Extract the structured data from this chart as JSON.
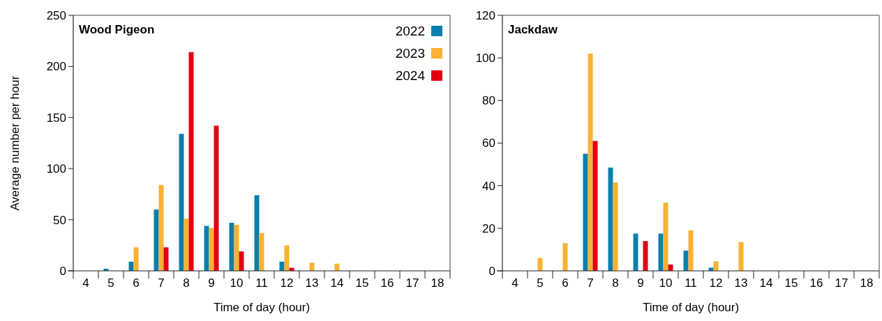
{
  "chart_data": [
    {
      "type": "bar",
      "title": "Wood Pigeon",
      "xlabel": "Time of day (hour)",
      "ylabel": "Average number per hour",
      "categories": [
        "4",
        "5",
        "6",
        "7",
        "8",
        "9",
        "10",
        "11",
        "12",
        "13",
        "14",
        "15",
        "16",
        "17",
        "18"
      ],
      "series": [
        {
          "name": "2022",
          "color": "#0a7fac",
          "values": [
            null,
            2,
            9,
            60,
            134,
            44,
            47,
            74,
            9,
            null,
            null,
            null,
            null,
            null,
            null
          ]
        },
        {
          "name": "2023",
          "color": "#f9b233",
          "values": [
            null,
            null,
            23,
            84,
            51,
            42,
            45,
            37,
            25,
            8,
            7,
            null,
            null,
            null,
            null
          ]
        },
        {
          "name": "2024",
          "color": "#e1000f",
          "values": [
            null,
            null,
            null,
            23,
            214,
            142,
            19,
            null,
            3,
            null,
            null,
            null,
            null,
            null,
            null
          ]
        }
      ],
      "ylim": [
        0,
        250
      ],
      "yticks": [
        0,
        50,
        100,
        150,
        200,
        250
      ],
      "legend": "top right",
      "grid": false
    },
    {
      "type": "bar",
      "title": "Jackdaw",
      "xlabel": "Time of day (hour)",
      "categories": [
        "4",
        "5",
        "6",
        "7",
        "8",
        "9",
        "10",
        "11",
        "12",
        "13",
        "14",
        "15",
        "16",
        "17",
        "18"
      ],
      "series": [
        {
          "color": "#0a7fac",
          "values": [
            null,
            null,
            null,
            55,
            48.5,
            17.5,
            17.5,
            9.5,
            1.5,
            null,
            null,
            null,
            null,
            null,
            null
          ]
        },
        {
          "color": "#f9b233",
          "values": [
            null,
            6,
            13,
            102,
            41.5,
            null,
            32,
            19,
            4.5,
            13.5,
            null,
            null,
            null,
            null,
            null
          ]
        },
        {
          "color": "#e1000f",
          "values": [
            null,
            null,
            null,
            61,
            null,
            14,
            3,
            null,
            null,
            null,
            null,
            null,
            null,
            null,
            null
          ]
        }
      ],
      "ylim": [
        0,
        120
      ],
      "yticks": [
        0,
        20,
        40,
        60,
        80,
        100,
        120
      ],
      "legend": false,
      "grid": false
    }
  ]
}
